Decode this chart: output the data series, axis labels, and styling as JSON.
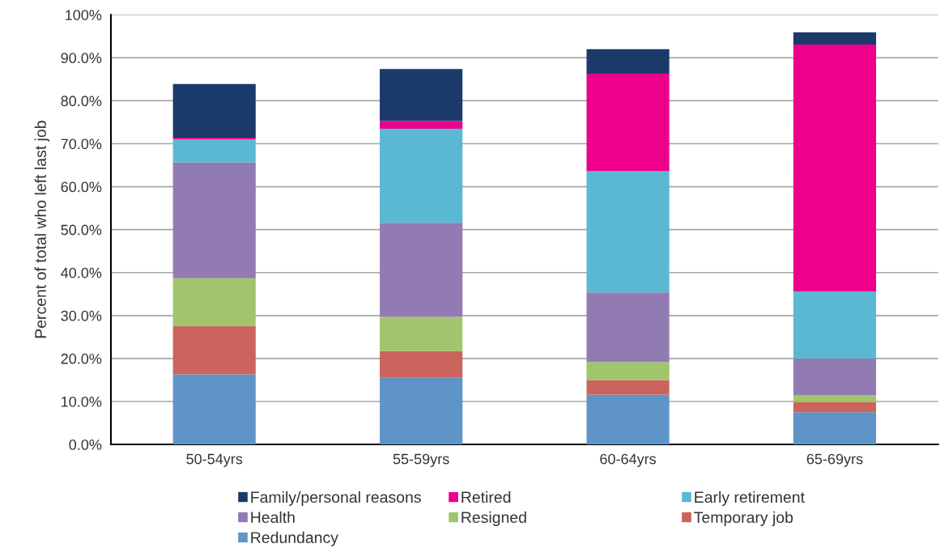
{
  "chart_data": {
    "type": "bar",
    "stacked": true,
    "ylabel": "Percent of total who left last job",
    "categories": [
      "50-54yrs",
      "55-59yrs",
      "60-64yrs",
      "65-69yrs"
    ],
    "series": [
      {
        "name": "Redundancy",
        "color": "#5f94c8",
        "values": [
          16.3,
          15.5,
          11.6,
          7.5
        ]
      },
      {
        "name": "Temporary job",
        "color": "#cb645c",
        "values": [
          11.3,
          6.2,
          3.4,
          2.3
        ]
      },
      {
        "name": "Resigned",
        "color": "#a0c56c",
        "values": [
          11.1,
          8.0,
          4.2,
          1.6
        ]
      },
      {
        "name": "Health",
        "color": "#927bb2",
        "values": [
          26.9,
          21.9,
          16.2,
          8.6
        ]
      },
      {
        "name": "Early retirement",
        "color": "#5bb8d2",
        "values": [
          5.4,
          21.9,
          28.2,
          15.6
        ]
      },
      {
        "name": "Retired",
        "color": "#ec008c",
        "values": [
          0.4,
          1.8,
          22.7,
          57.5
        ]
      },
      {
        "name": "Family/personal reasons",
        "color": "#1a3a6a",
        "values": [
          12.5,
          12.1,
          5.7,
          2.8
        ]
      }
    ],
    "ylim": [
      0,
      100
    ],
    "yticks": [
      {
        "value": 0,
        "label": "0.0%"
      },
      {
        "value": 10,
        "label": "10.0%"
      },
      {
        "value": 20,
        "label": "20.0%"
      },
      {
        "value": 30,
        "label": "30.0%"
      },
      {
        "value": 40,
        "label": "40.0%"
      },
      {
        "value": 50,
        "label": "50.0%"
      },
      {
        "value": 60,
        "label": "60.0%"
      },
      {
        "value": 70,
        "label": "70.0%"
      },
      {
        "value": 80,
        "label": "80.0%"
      },
      {
        "value": 90,
        "label": "90.0%"
      },
      {
        "value": 100,
        "label": "100%"
      }
    ],
    "grid": "y",
    "legend": "bottom"
  }
}
